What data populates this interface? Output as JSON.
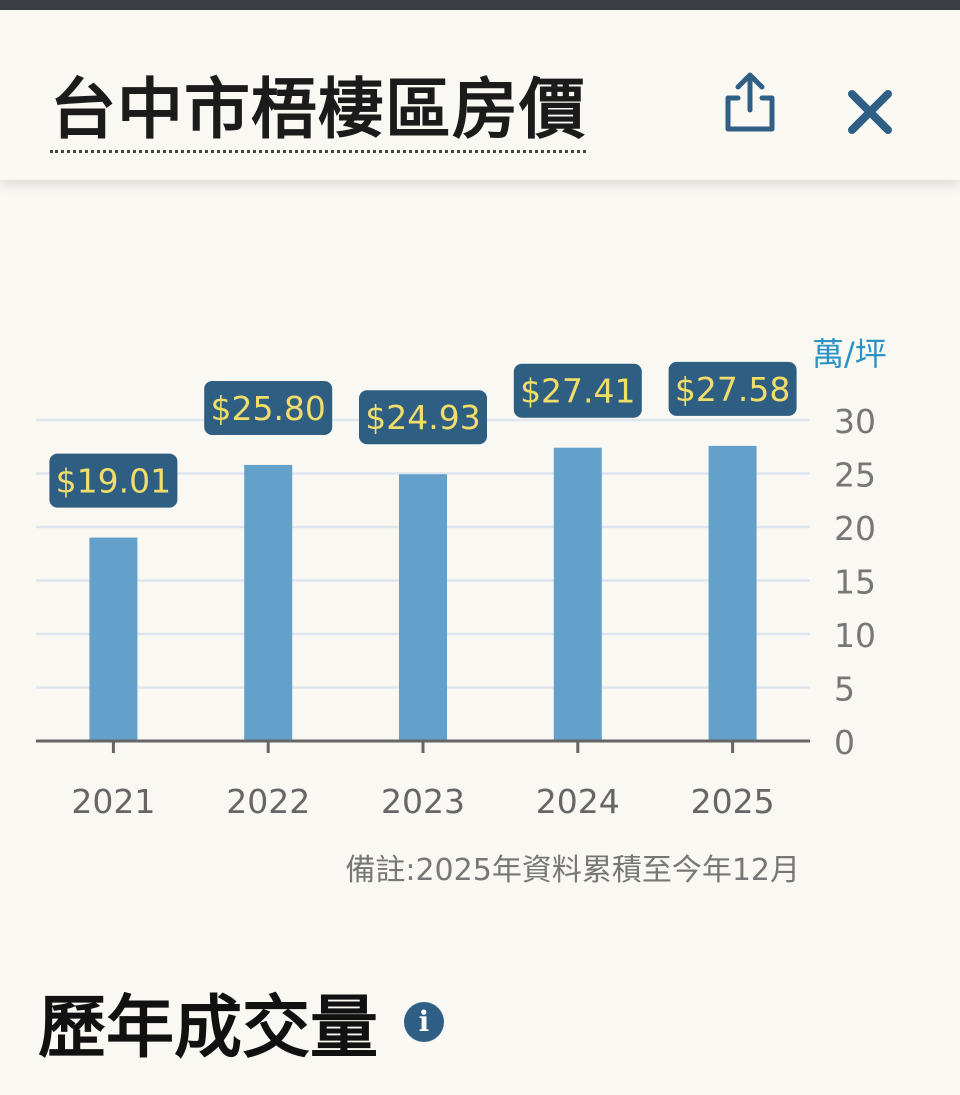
{
  "header": {
    "title": "台中市梧棲區房價",
    "share_icon": "share-icon",
    "close_icon": "close-icon"
  },
  "chart_data": {
    "type": "bar",
    "categories": [
      "2021",
      "2022",
      "2023",
      "2024",
      "2025"
    ],
    "values": [
      19.01,
      25.8,
      24.93,
      27.41,
      27.58
    ],
    "value_labels": [
      "$19.01",
      "$25.80",
      "$24.93",
      "$27.41",
      "$27.58"
    ],
    "y_unit": "萬/坪",
    "y_ticks": [
      "0",
      "5",
      "10",
      "15",
      "20",
      "25",
      "30"
    ],
    "ylim": [
      0,
      30
    ],
    "y_axis_side": "right",
    "grid": true,
    "bar_color": "#63a1cb",
    "label_bg": "#2e5f82",
    "label_color": "#f2dc6a"
  },
  "note": "備註:2025年資料累積至今年12月",
  "section": {
    "title": "歷年成交量",
    "info_icon": "info-icon"
  },
  "colors": {
    "background": "#f9f8f3",
    "accent": "#2f5f84",
    "unit_text": "#2b93c4"
  }
}
